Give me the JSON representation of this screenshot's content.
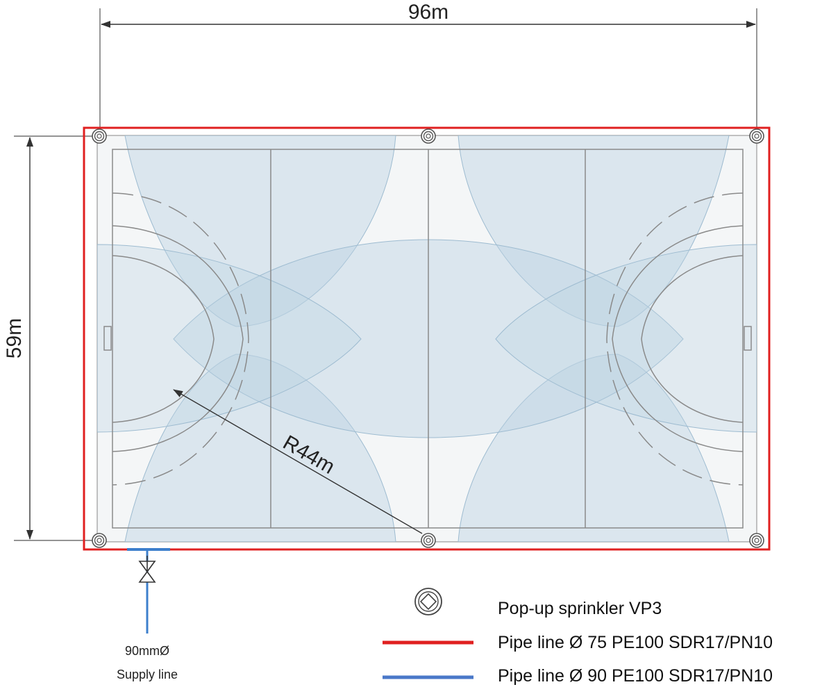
{
  "dimensions": {
    "width_label": "96m",
    "height_label": "59m",
    "radius_label": "R44m"
  },
  "supply": {
    "diameter_label": "90mmØ",
    "line_label": "Supply line"
  },
  "legend": {
    "sprinkler_label": "Pop-up sprinkler VP3",
    "pipe75_label": "Pipe line Ø 75 PE100 SDR17/PN10",
    "pipe90_label": "Pipe line Ø 90 PE100 SDR17/PN10"
  },
  "colors": {
    "pipe75": "#e02020",
    "pipe90": "#3d7fcc",
    "coverage": "#bcd3e2",
    "field_line": "#8a8a8a",
    "dimension_line": "#333333"
  },
  "icons": [
    "sprinkler-icon",
    "valve-icon"
  ]
}
